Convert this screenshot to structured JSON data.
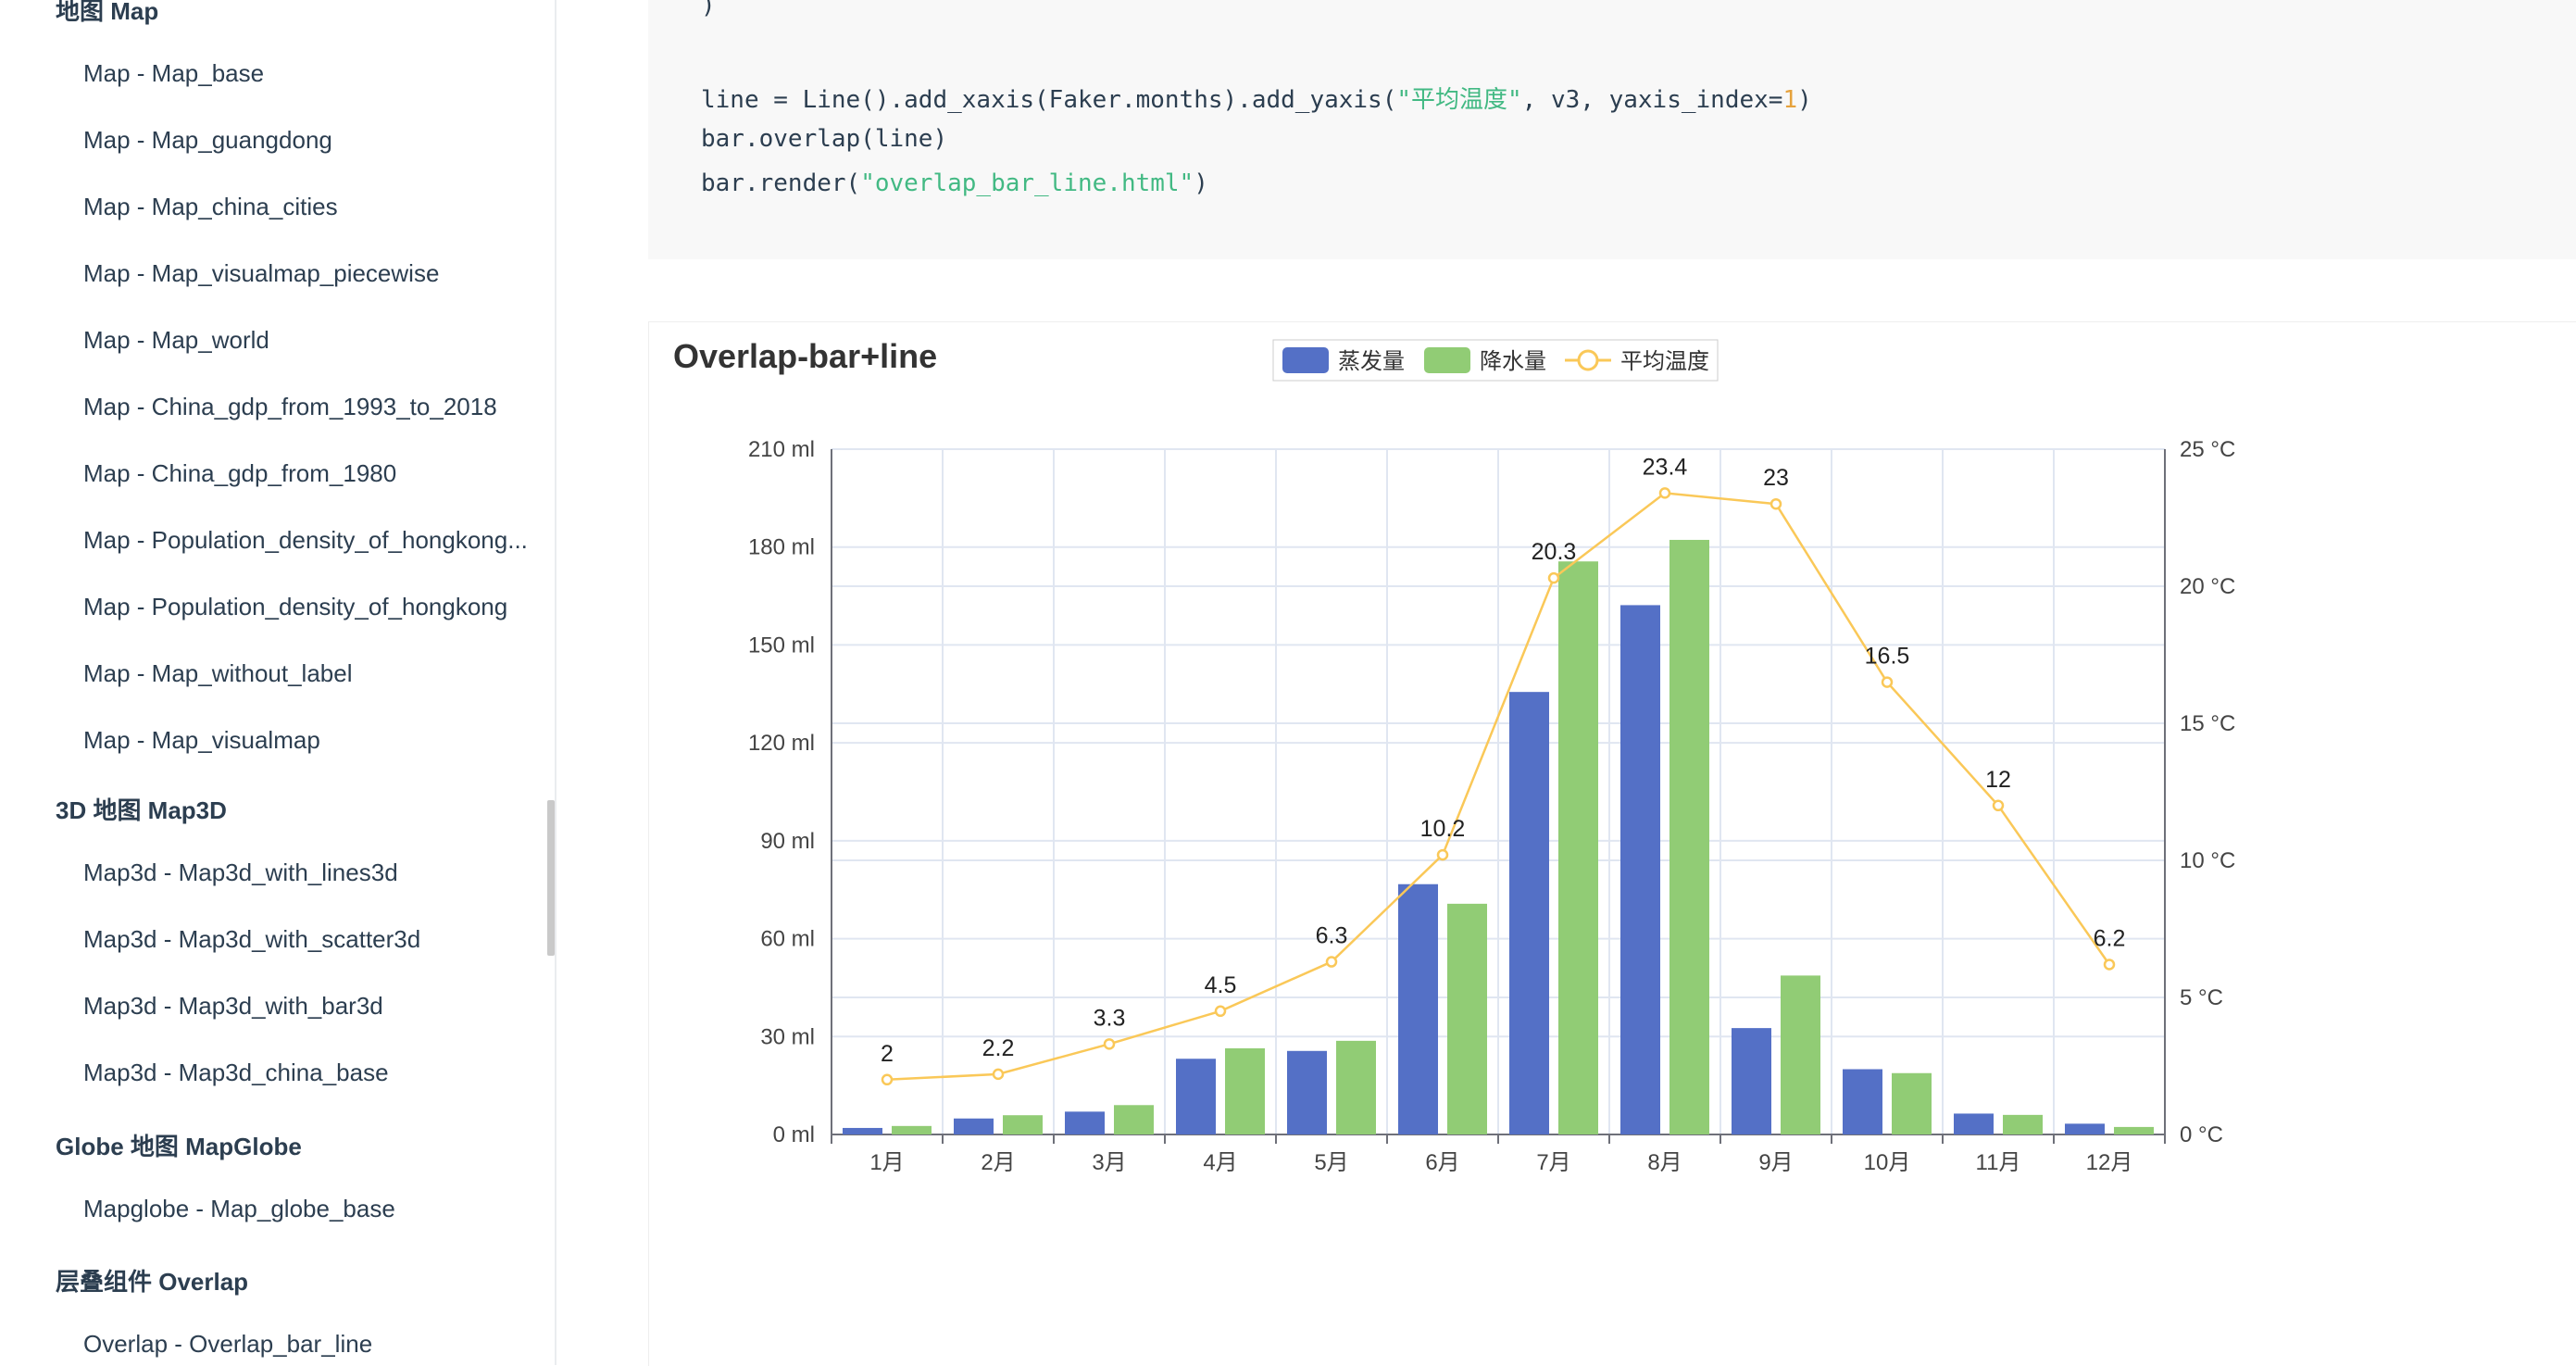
{
  "sidebar": {
    "sections": [
      {
        "id": "map",
        "label": "地图 Map",
        "items": [
          "Map - Map_base",
          "Map - Map_guangdong",
          "Map - Map_china_cities",
          "Map - Map_visualmap_piecewise",
          "Map - Map_world",
          "Map - China_gdp_from_1993_to_2018",
          "Map - China_gdp_from_1980",
          "Map - Population_density_of_hongkong...",
          "Map - Population_density_of_hongkong",
          "Map - Map_without_label",
          "Map - Map_visualmap"
        ]
      },
      {
        "id": "map3d",
        "label": "3D 地图 Map3D",
        "items": [
          "Map3d - Map3d_with_lines3d",
          "Map3d - Map3d_with_scatter3d",
          "Map3d - Map3d_with_bar3d",
          "Map3d - Map3d_china_base"
        ]
      },
      {
        "id": "globe",
        "label": "Globe 地图 MapGlobe",
        "items": [
          "Mapglobe - Map_globe_base"
        ]
      },
      {
        "id": "overlap",
        "label": "层叠组件 Overlap",
        "items": [
          "Overlap - Overlap_bar_line"
        ]
      }
    ]
  },
  "code": {
    "line0": ")",
    "line1_a": "line = Line().add_xaxis(Faker.months).add_yaxis(",
    "line1_str": "\"平均温度\"",
    "line1_b": ", v3, yaxis_index=",
    "line1_num": "1",
    "line1_c": ")",
    "line2": "bar.overlap(line)",
    "line3_a": "bar.render(",
    "line3_str": "\"overlap_bar_line.html\"",
    "line3_b": ")"
  },
  "chart_data": {
    "type": "bar",
    "title": "Overlap-bar+line",
    "categories": [
      "1月",
      "2月",
      "3月",
      "4月",
      "5月",
      "6月",
      "7月",
      "8月",
      "9月",
      "10月",
      "11月",
      "12月"
    ],
    "series": [
      {
        "name": "蒸发量",
        "type": "bar",
        "axis": "left",
        "color": "#5470c6",
        "values": [
          2,
          4.9,
          7,
          23.2,
          25.6,
          76.7,
          135.6,
          162.2,
          32.6,
          20,
          6.4,
          3.3
        ]
      },
      {
        "name": "降水量",
        "type": "bar",
        "axis": "left",
        "color": "#91cc75",
        "values": [
          2.6,
          5.9,
          9,
          26.4,
          28.7,
          70.7,
          175.6,
          182.2,
          48.7,
          18.8,
          6,
          2.3
        ]
      },
      {
        "name": "平均温度",
        "type": "line",
        "axis": "right",
        "color": "#fac858",
        "values": [
          2,
          2.2,
          3.3,
          4.5,
          6.3,
          10.2,
          20.3,
          23.4,
          23,
          16.5,
          12,
          6.2
        ]
      }
    ],
    "yaxis_left": {
      "ticks": [
        "0 ml",
        "30 ml",
        "60 ml",
        "90 ml",
        "120 ml",
        "150 ml",
        "180 ml",
        "210 ml"
      ],
      "min": 0,
      "max": 210
    },
    "yaxis_right": {
      "ticks": [
        "0 °C",
        "5 °C",
        "10 °C",
        "15 °C",
        "20 °C",
        "25 °C"
      ],
      "min": 0,
      "max": 25
    },
    "legend_position": "top-center",
    "grid": true
  }
}
